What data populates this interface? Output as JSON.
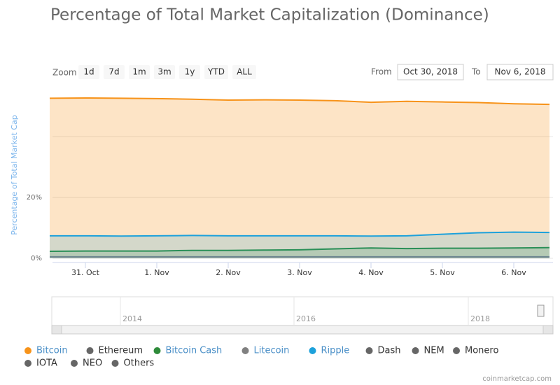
{
  "chart_data": {
    "type": "area",
    "title": "Percentage of Total Market Capitalization (Dominance)",
    "y_axis_label": "Percentage of Total Market Cap",
    "categories": [
      null,
      "31. Oct",
      null,
      "1. Nov",
      null,
      "2. Nov",
      null,
      "3. Nov",
      null,
      "4. Nov",
      null,
      "5. Nov",
      null,
      "6. Nov",
      null
    ],
    "ylim": [
      0,
      55
    ],
    "yticks": [
      {
        "value": 0,
        "label": "0%"
      },
      {
        "value": 20,
        "label": "20%"
      },
      {
        "value": 40,
        "label": null
      }
    ],
    "grid": true,
    "series": [
      {
        "name": "Bitcoin",
        "color": "#f7931a",
        "visible": true,
        "values": [
          52.6,
          52.7,
          52.6,
          52.5,
          52.3,
          52.0,
          52.1,
          52.0,
          51.8,
          51.3,
          51.6,
          51.4,
          51.2,
          50.8,
          50.6
        ]
      },
      {
        "name": "Ethereum",
        "color": "#666666",
        "visible": false
      },
      {
        "name": "Bitcoin Cash",
        "color": "#2e8b3a",
        "visible": true,
        "values": [
          2.3,
          2.4,
          2.4,
          2.4,
          2.6,
          2.6,
          2.7,
          2.8,
          3.1,
          3.4,
          3.2,
          3.3,
          3.3,
          3.4,
          3.5
        ]
      },
      {
        "name": "Litecoin",
        "color": "#808080",
        "visible": true,
        "values": [
          0.5,
          0.5,
          0.5,
          0.5,
          0.5,
          0.5,
          0.5,
          0.5,
          0.5,
          0.5,
          0.5,
          0.5,
          0.5,
          0.5,
          0.5
        ]
      },
      {
        "name": "Ripple",
        "color": "#1da1db",
        "visible": true,
        "values": [
          7.4,
          7.4,
          7.3,
          7.4,
          7.5,
          7.4,
          7.4,
          7.4,
          7.4,
          7.3,
          7.4,
          7.9,
          8.4,
          8.6,
          8.5
        ]
      },
      {
        "name": "Dash",
        "color": "#666666",
        "visible": false
      },
      {
        "name": "NEM",
        "color": "#666666",
        "visible": false
      },
      {
        "name": "Monero",
        "color": "#666666",
        "visible": false
      },
      {
        "name": "IOTA",
        "color": "#666666",
        "visible": false
      },
      {
        "name": "NEO",
        "color": "#666666",
        "visible": false
      },
      {
        "name": "Others",
        "color": "#666666",
        "visible": false
      }
    ]
  },
  "ui": {
    "zoom_label": "Zoom",
    "zoom_buttons": [
      "1d",
      "7d",
      "1m",
      "3m",
      "1y",
      "YTD",
      "ALL"
    ],
    "from_label": "From",
    "from_date": "Oct 30, 2018",
    "to_label": "To",
    "to_date": "Nov 6, 2018",
    "navigator_years": [
      "2014",
      "2016",
      "2018"
    ],
    "credit": "coinmarketcap.com"
  }
}
